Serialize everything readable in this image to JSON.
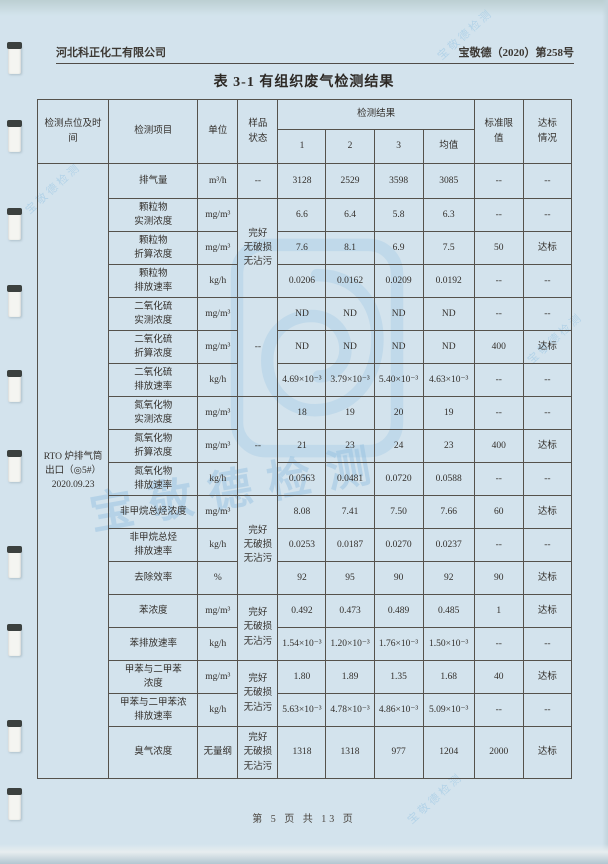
{
  "page": {
    "header_left": "河北科正化工有限公司",
    "header_right": "宝敬德（2020）第258号",
    "title": "表 3-1 有组织废气检测结果",
    "footer": "第 5 页 共 13 页"
  },
  "watermark": {
    "text": "宝敬德检测",
    "color": "#94c1e0"
  },
  "table": {
    "header": {
      "location": "检测点位及时间",
      "item": "检测项目",
      "unit": "单位",
      "sample": "样品\n状态",
      "results": "检测结果",
      "result_cols": [
        "1",
        "2",
        "3",
        "均值"
      ],
      "limit": "标准限\n值",
      "status": "达标\n情况"
    },
    "rows": [
      [
        {
          "c": "loc",
          "t": "RTO 炉排气筒\n出口（◎5#）\n2020.09.23",
          "rs": 18
        },
        {
          "c": "item",
          "t": "排气量"
        },
        {
          "c": "unit",
          "t": "m³/h"
        },
        {
          "c": "sample",
          "t": "--"
        },
        {
          "c": "v",
          "t": "3128"
        },
        {
          "c": "v",
          "t": "2529"
        },
        {
          "c": "v",
          "t": "3598"
        },
        {
          "c": "v",
          "t": "3085"
        },
        {
          "c": "lim",
          "t": "--"
        },
        {
          "c": "st",
          "t": "--"
        }
      ],
      [
        {
          "c": "item",
          "t": "颗粒物\n实测浓度"
        },
        {
          "c": "unit",
          "t": "mg/m³"
        },
        {
          "c": "sample",
          "t": "完好\n无破损\n无沾污",
          "rs": 3
        },
        {
          "c": "v",
          "t": "6.6"
        },
        {
          "c": "v",
          "t": "6.4"
        },
        {
          "c": "v",
          "t": "5.8"
        },
        {
          "c": "v",
          "t": "6.3"
        },
        {
          "c": "lim",
          "t": "--"
        },
        {
          "c": "st",
          "t": "--"
        }
      ],
      [
        {
          "c": "item",
          "t": "颗粒物\n折算浓度"
        },
        {
          "c": "unit",
          "t": "mg/m³"
        },
        {
          "c": "v",
          "t": "7.6"
        },
        {
          "c": "v",
          "t": "8.1"
        },
        {
          "c": "v",
          "t": "6.9"
        },
        {
          "c": "v",
          "t": "7.5"
        },
        {
          "c": "lim",
          "t": "50"
        },
        {
          "c": "st",
          "t": "达标"
        }
      ],
      [
        {
          "c": "item",
          "t": "颗粒物\n排放速率"
        },
        {
          "c": "unit",
          "t": "kg/h"
        },
        {
          "c": "v",
          "t": "0.0206"
        },
        {
          "c": "v",
          "t": "0.0162"
        },
        {
          "c": "v",
          "t": "0.0209"
        },
        {
          "c": "v",
          "t": "0.0192"
        },
        {
          "c": "lim",
          "t": "--"
        },
        {
          "c": "st",
          "t": "--"
        }
      ],
      [
        {
          "c": "item",
          "t": "二氧化硫\n实测浓度"
        },
        {
          "c": "unit",
          "t": "mg/m³"
        },
        {
          "c": "sample",
          "t": "--",
          "rs": 3
        },
        {
          "c": "v",
          "t": "ND"
        },
        {
          "c": "v",
          "t": "ND"
        },
        {
          "c": "v",
          "t": "ND"
        },
        {
          "c": "v",
          "t": "ND"
        },
        {
          "c": "lim",
          "t": "--"
        },
        {
          "c": "st",
          "t": "--"
        }
      ],
      [
        {
          "c": "item",
          "t": "二氧化硫\n折算浓度"
        },
        {
          "c": "unit",
          "t": "mg/m³"
        },
        {
          "c": "v",
          "t": "ND"
        },
        {
          "c": "v",
          "t": "ND"
        },
        {
          "c": "v",
          "t": "ND"
        },
        {
          "c": "v",
          "t": "ND"
        },
        {
          "c": "lim",
          "t": "400"
        },
        {
          "c": "st",
          "t": "达标"
        }
      ],
      [
        {
          "c": "item",
          "t": "二氧化硫\n排放速率"
        },
        {
          "c": "unit",
          "t": "kg/h"
        },
        {
          "c": "v",
          "t": "4.69×10⁻³"
        },
        {
          "c": "v",
          "t": "3.79×10⁻³"
        },
        {
          "c": "v",
          "t": "5.40×10⁻³"
        },
        {
          "c": "v",
          "t": "4.63×10⁻³"
        },
        {
          "c": "lim",
          "t": "--"
        },
        {
          "c": "st",
          "t": "--"
        }
      ],
      [
        {
          "c": "item",
          "t": "氮氧化物\n实测浓度"
        },
        {
          "c": "unit",
          "t": "mg/m³"
        },
        {
          "c": "sample",
          "t": "--",
          "rs": 3
        },
        {
          "c": "v",
          "t": "18"
        },
        {
          "c": "v",
          "t": "19"
        },
        {
          "c": "v",
          "t": "20"
        },
        {
          "c": "v",
          "t": "19"
        },
        {
          "c": "lim",
          "t": "--"
        },
        {
          "c": "st",
          "t": "--"
        }
      ],
      [
        {
          "c": "item",
          "t": "氮氧化物\n折算浓度"
        },
        {
          "c": "unit",
          "t": "mg/m³"
        },
        {
          "c": "v",
          "t": "21"
        },
        {
          "c": "v",
          "t": "23"
        },
        {
          "c": "v",
          "t": "24"
        },
        {
          "c": "v",
          "t": "23"
        },
        {
          "c": "lim",
          "t": "400"
        },
        {
          "c": "st",
          "t": "达标"
        }
      ],
      [
        {
          "c": "item",
          "t": "氮氧化物\n排放速率"
        },
        {
          "c": "unit",
          "t": "kg/h"
        },
        {
          "c": "v",
          "t": "0.0563"
        },
        {
          "c": "v",
          "t": "0.0481"
        },
        {
          "c": "v",
          "t": "0.0720"
        },
        {
          "c": "v",
          "t": "0.0588"
        },
        {
          "c": "lim",
          "t": "--"
        },
        {
          "c": "st",
          "t": "--"
        }
      ],
      [
        {
          "c": "item",
          "t": "非甲烷总烃浓度"
        },
        {
          "c": "unit",
          "t": "mg/m³"
        },
        {
          "c": "sample",
          "t": "完好\n无破损\n无沾污",
          "rs": 3
        },
        {
          "c": "v",
          "t": "8.08"
        },
        {
          "c": "v",
          "t": "7.41"
        },
        {
          "c": "v",
          "t": "7.50"
        },
        {
          "c": "v",
          "t": "7.66"
        },
        {
          "c": "lim",
          "t": "60"
        },
        {
          "c": "st",
          "t": "达标"
        }
      ],
      [
        {
          "c": "item",
          "t": "非甲烷总烃\n排放速率"
        },
        {
          "c": "unit",
          "t": "kg/h"
        },
        {
          "c": "v",
          "t": "0.0253"
        },
        {
          "c": "v",
          "t": "0.0187"
        },
        {
          "c": "v",
          "t": "0.0270"
        },
        {
          "c": "v",
          "t": "0.0237"
        },
        {
          "c": "lim",
          "t": "--"
        },
        {
          "c": "st",
          "t": "--"
        }
      ],
      [
        {
          "c": "item",
          "t": "去除效率"
        },
        {
          "c": "unit",
          "t": "%"
        },
        {
          "c": "v",
          "t": "92"
        },
        {
          "c": "v",
          "t": "95"
        },
        {
          "c": "v",
          "t": "90"
        },
        {
          "c": "v",
          "t": "92"
        },
        {
          "c": "lim",
          "t": "90"
        },
        {
          "c": "st",
          "t": "达标"
        }
      ],
      [
        {
          "c": "item",
          "t": "苯浓度"
        },
        {
          "c": "unit",
          "t": "mg/m³"
        },
        {
          "c": "sample",
          "t": "完好\n无破损\n无沾污",
          "rs": 2
        },
        {
          "c": "v",
          "t": "0.492"
        },
        {
          "c": "v",
          "t": "0.473"
        },
        {
          "c": "v",
          "t": "0.489"
        },
        {
          "c": "v",
          "t": "0.485"
        },
        {
          "c": "lim",
          "t": "1"
        },
        {
          "c": "st",
          "t": "达标"
        }
      ],
      [
        {
          "c": "item",
          "t": "苯排放速率"
        },
        {
          "c": "unit",
          "t": "kg/h"
        },
        {
          "c": "v",
          "t": "1.54×10⁻³"
        },
        {
          "c": "v",
          "t": "1.20×10⁻³"
        },
        {
          "c": "v",
          "t": "1.76×10⁻³"
        },
        {
          "c": "v",
          "t": "1.50×10⁻³"
        },
        {
          "c": "lim",
          "t": "--"
        },
        {
          "c": "st",
          "t": "--"
        }
      ],
      [
        {
          "c": "item",
          "t": "甲苯与二甲苯\n浓度"
        },
        {
          "c": "unit",
          "t": "mg/m³"
        },
        {
          "c": "sample",
          "t": "完好\n无破损\n无沾污",
          "rs": 2
        },
        {
          "c": "v",
          "t": "1.80"
        },
        {
          "c": "v",
          "t": "1.89"
        },
        {
          "c": "v",
          "t": "1.35"
        },
        {
          "c": "v",
          "t": "1.68"
        },
        {
          "c": "lim",
          "t": "40"
        },
        {
          "c": "st",
          "t": "达标"
        }
      ],
      [
        {
          "c": "item",
          "t": "甲苯与二甲苯浓\n排放速率"
        },
        {
          "c": "unit",
          "t": "kg/h"
        },
        {
          "c": "v",
          "t": "5.63×10⁻³"
        },
        {
          "c": "v",
          "t": "4.78×10⁻³"
        },
        {
          "c": "v",
          "t": "4.86×10⁻³"
        },
        {
          "c": "v",
          "t": "5.09×10⁻³"
        },
        {
          "c": "lim",
          "t": "--"
        },
        {
          "c": "st",
          "t": "--"
        }
      ],
      [
        {
          "c": "item",
          "t": "臭气浓度"
        },
        {
          "c": "unit",
          "t": "无量纲"
        },
        {
          "c": "sample",
          "t": "完好\n无破损\n无沾污"
        },
        {
          "c": "v",
          "t": "1318"
        },
        {
          "c": "v",
          "t": "1318"
        },
        {
          "c": "v",
          "t": "977"
        },
        {
          "c": "v",
          "t": "1204"
        },
        {
          "c": "lim",
          "t": "2000"
        },
        {
          "c": "st",
          "t": "达标"
        }
      ]
    ]
  }
}
